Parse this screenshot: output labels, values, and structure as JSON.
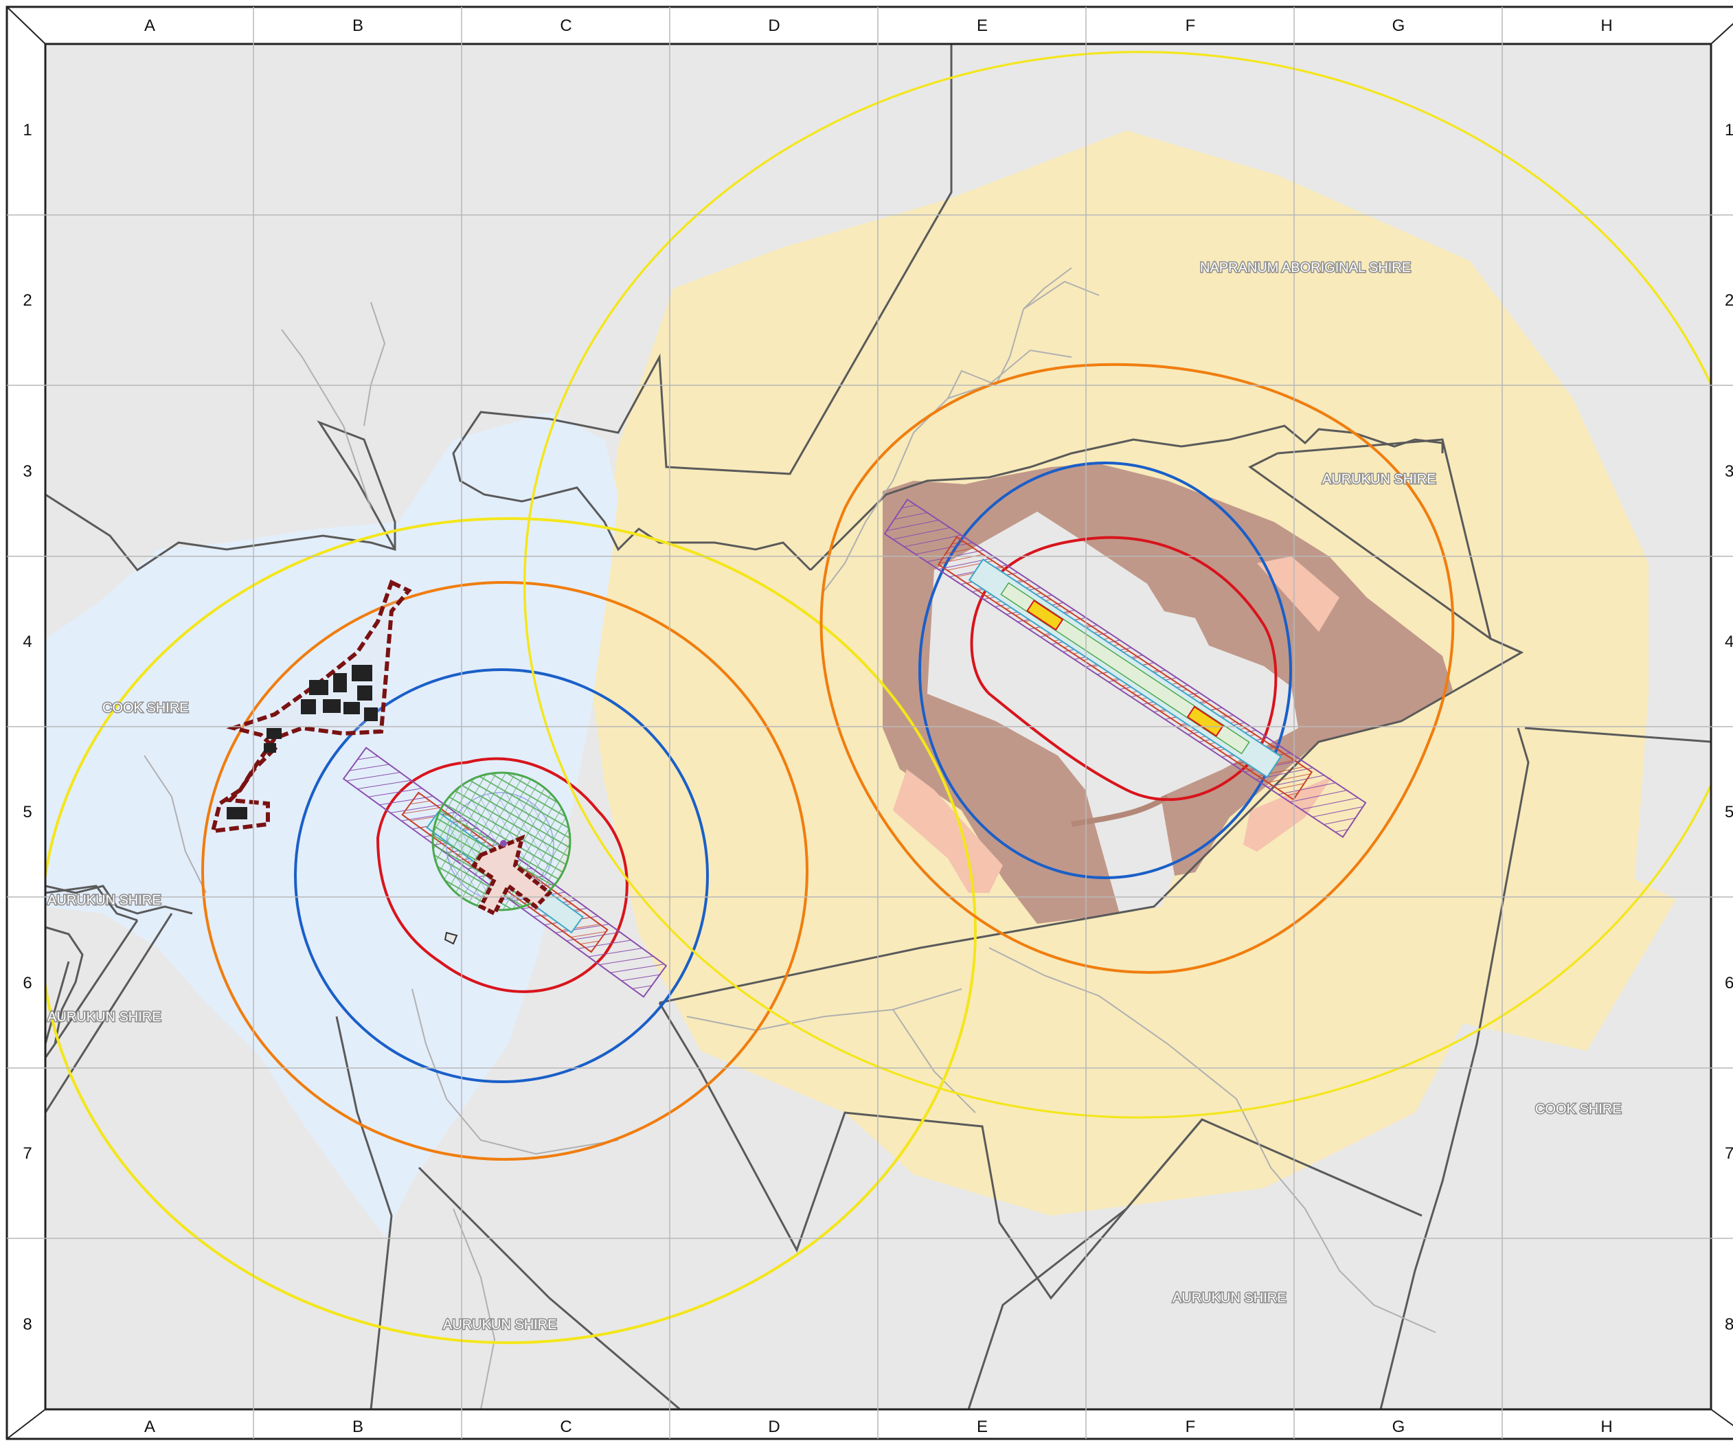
{
  "grid": {
    "columns": [
      "A",
      "B",
      "C",
      "D",
      "E",
      "F",
      "G",
      "H"
    ],
    "rows": [
      "1",
      "2",
      "3",
      "4",
      "5",
      "6",
      "7",
      "8"
    ]
  },
  "regions": {
    "napranum": "NAPRANUM ABORIGINAL SHIRE",
    "aurukun_ne": "AURUKUN SHIRE",
    "cook_w": "COOK SHIRE",
    "aurukun_w1": "AURUKUN SHIRE",
    "aurukun_w2": "AURUKUN SHIRE",
    "cook_e": "COOK SHIRE",
    "aurukun_s1": "AURUKUN SHIRE",
    "aurukun_s2": "AURUKUN SHIRE"
  },
  "colors": {
    "background": "#e8e8e8",
    "water": "#e3eefb",
    "buffer_zone": "#f8eabb",
    "mining_area": "#c0988a",
    "circle_yellow": "#f4e61a",
    "circle_orange": "#f07d0e",
    "circle_blue": "#1a5fc8",
    "circle_red": "#d8141c",
    "boundary": "#5a5a5a"
  }
}
